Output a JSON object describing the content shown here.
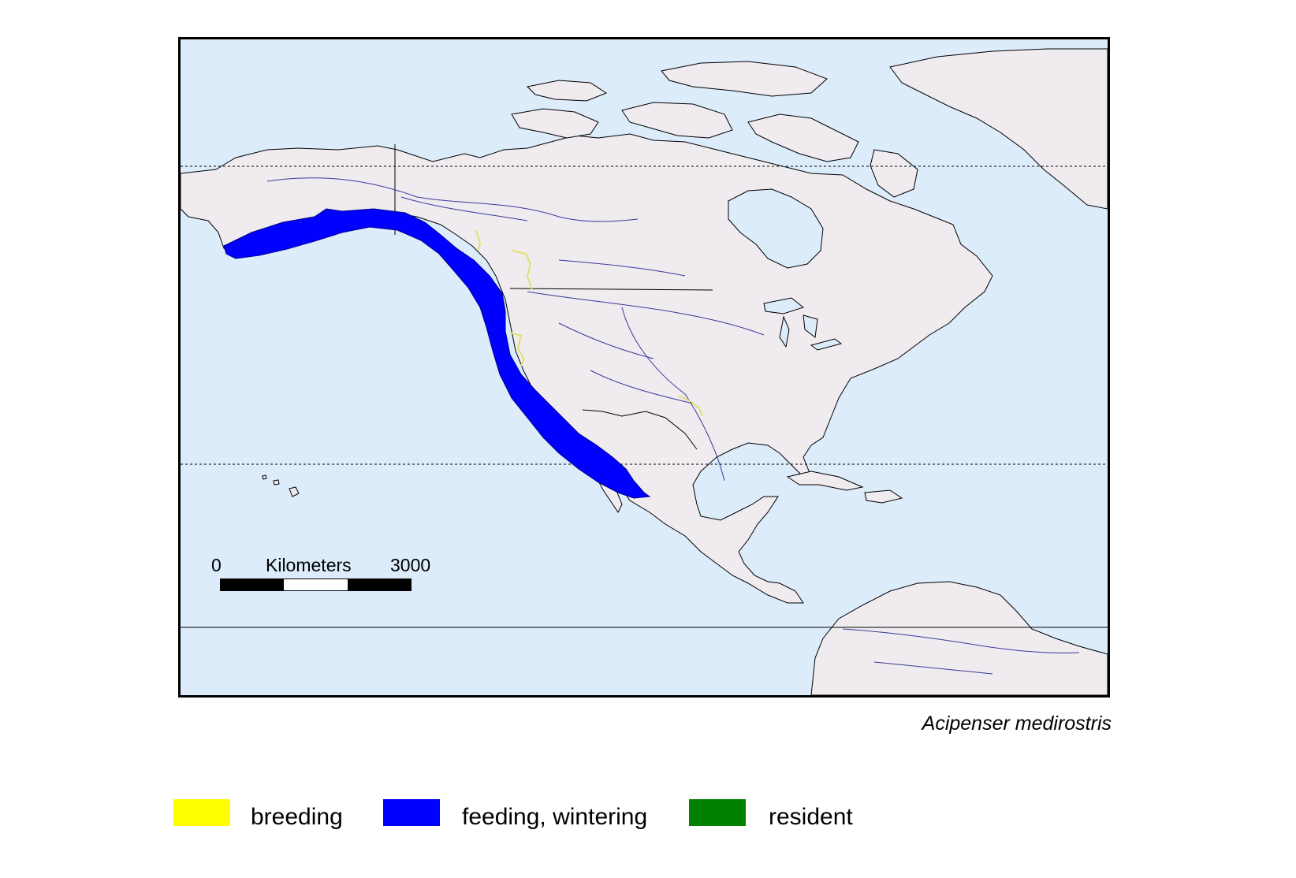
{
  "map": {
    "colors": {
      "ocean": "#dcecfb",
      "land": "#efebef",
      "river": "#3a3a9a",
      "range_feeding": "#0000ff",
      "range_breeding": "#e0e070"
    },
    "scale_bar": {
      "start_label": "0",
      "unit_label": "Kilometers",
      "end_label": "3000"
    }
  },
  "species_name": "Acipenser medirostris",
  "legend": [
    {
      "label": "breeding",
      "color": "#ffff00"
    },
    {
      "label": "feeding, wintering",
      "color": "#0000ff"
    },
    {
      "label": "resident",
      "color": "#008000"
    }
  ]
}
